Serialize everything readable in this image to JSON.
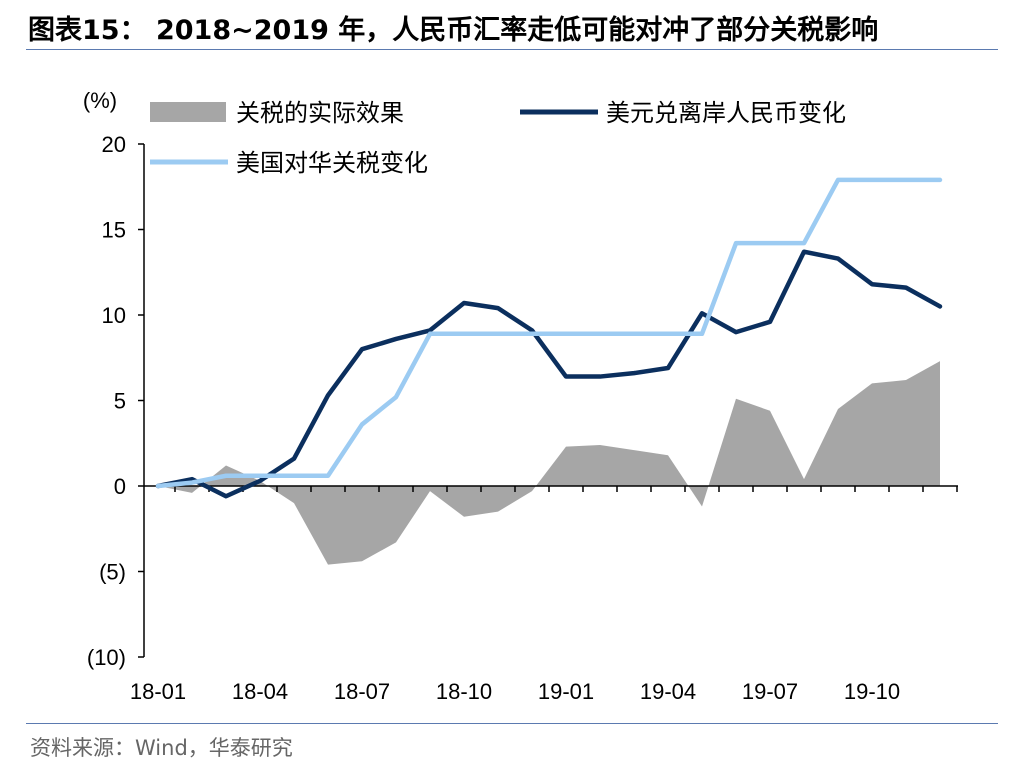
{
  "title": "图表15： 2018~2019 年，人民币汇率走低可能对冲了部分关税影响",
  "source": "资料来源：Wind，华泰研究",
  "chart_data": {
    "type": "line",
    "unit_label": "(%)",
    "ylim": [
      -10,
      20
    ],
    "yticks": [
      20,
      15,
      10,
      5,
      0,
      -5,
      -10
    ],
    "ytick_labels": [
      "20",
      "15",
      "10",
      "5",
      "0",
      "(5)",
      "(10)"
    ],
    "x_labels": [
      "18-01",
      "18-04",
      "18-07",
      "18-10",
      "19-01",
      "19-04",
      "19-07",
      "19-10"
    ],
    "x_months": [
      "18-01",
      "18-02",
      "18-03",
      "18-04",
      "18-05",
      "18-06",
      "18-07",
      "18-08",
      "18-09",
      "18-10",
      "18-11",
      "18-12",
      "19-01",
      "19-02",
      "19-03",
      "19-04",
      "19-05",
      "19-06",
      "19-07",
      "19-08",
      "19-09",
      "19-10",
      "19-11",
      "19-12"
    ],
    "legend_position": "top",
    "grid": false,
    "series": [
      {
        "name": "关税的实际效果",
        "kind": "area",
        "color": "#a6a6a6",
        "values": [
          0.0,
          -0.4,
          1.2,
          0.3,
          -1.0,
          -4.6,
          -4.4,
          -3.3,
          -0.3,
          -1.8,
          -1.5,
          -0.3,
          2.3,
          2.4,
          2.1,
          1.8,
          -1.2,
          5.1,
          4.4,
          0.4,
          4.5,
          6.0,
          6.2,
          7.3
        ]
      },
      {
        "name": "美元兑离岸人民币变化",
        "kind": "line",
        "color": "#0b2f5e",
        "values": [
          0.0,
          0.4,
          -0.6,
          0.3,
          1.6,
          5.3,
          8.0,
          8.6,
          9.1,
          10.7,
          10.4,
          9.1,
          6.4,
          6.4,
          6.6,
          6.9,
          10.1,
          9.0,
          9.6,
          13.7,
          13.3,
          11.8,
          11.6,
          10.5
        ]
      },
      {
        "name": "美国对华关税变化",
        "kind": "line",
        "color": "#9ccbf2",
        "values": [
          0.0,
          0.2,
          0.6,
          0.6,
          0.6,
          0.6,
          3.6,
          5.2,
          8.9,
          8.9,
          8.9,
          8.9,
          8.9,
          8.9,
          8.9,
          8.9,
          8.9,
          14.2,
          14.2,
          14.2,
          17.9,
          17.9,
          17.9,
          17.9
        ]
      }
    ]
  }
}
